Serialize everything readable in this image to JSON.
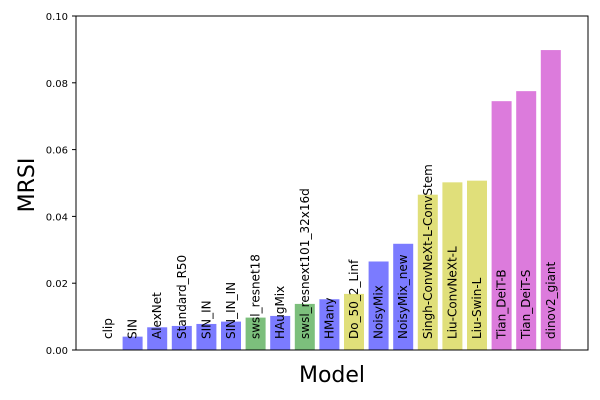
{
  "chart_data": {
    "type": "bar",
    "xlabel": "Model",
    "ylabel": "MRSI",
    "ylim": [
      0,
      0.1
    ],
    "yticks": [
      "0.00",
      "0.02",
      "0.04",
      "0.06",
      "0.08",
      "0.10"
    ],
    "grid": false,
    "categories": [
      "clip",
      "SIN",
      "AlexNet",
      "Standard_R50",
      "SIN_IN",
      "SIN_IN_IN",
      "swsl_resnet18",
      "HAugMix",
      "swsl_resnext101_32x16d",
      "HMany",
      "Do_50_2_Linf",
      "NoisyMix",
      "NoisyMix_new",
      "Singh-ConvNeXt-L-ConvStem",
      "Liu-ConvNeXt-L",
      "Liu-Swin-L",
      "Tian_DeiT-B",
      "Tian_DeiT-S",
      "dinov2_giant"
    ],
    "values": [
      0.0,
      0.004,
      0.0068,
      0.0072,
      0.0078,
      0.0085,
      0.0097,
      0.0102,
      0.0138,
      0.0152,
      0.0168,
      0.0265,
      0.0318,
      0.0465,
      0.0502,
      0.0507,
      0.0745,
      0.0775,
      0.0898
    ],
    "bar_colors": [
      "#7b7bff",
      "#7b7bff",
      "#7b7bff",
      "#7b7bff",
      "#7b7bff",
      "#7b7bff",
      "#7cbf7c",
      "#7b7bff",
      "#7cbf7c",
      "#7b7bff",
      "#e0df7a",
      "#7b7bff",
      "#7b7bff",
      "#e0df7a",
      "#e0df7a",
      "#e0df7a",
      "#dc7bdc",
      "#dc7bdc",
      "#dc7bdc"
    ]
  }
}
